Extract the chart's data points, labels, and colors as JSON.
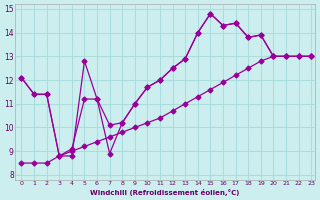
{
  "xlabel": "Windchill (Refroidissement éolien,°C)",
  "ylabel": "",
  "background_color": "#cceeee",
  "grid_color": "#aadddd",
  "line_color": "#990099",
  "xlim": [
    0,
    23
  ],
  "ylim": [
    8,
    15
  ],
  "xticks": [
    0,
    1,
    2,
    3,
    4,
    5,
    6,
    7,
    8,
    9,
    10,
    11,
    12,
    13,
    14,
    15,
    16,
    17,
    18,
    19,
    20,
    21,
    22,
    23
  ],
  "yticks": [
    8,
    9,
    10,
    11,
    12,
    13,
    14,
    15
  ],
  "line1_x": [
    0,
    1,
    2,
    3,
    4,
    5,
    6,
    7,
    8,
    9,
    10,
    11,
    12,
    13,
    14,
    15,
    16,
    17,
    18,
    19,
    20,
    21,
    22,
    23
  ],
  "line1_y": [
    12.1,
    11.4,
    11.4,
    8.8,
    8.8,
    12.8,
    11.2,
    8.9,
    10.2,
    11.0,
    11.7,
    12.0,
    12.5,
    12.9,
    14.0,
    14.8,
    14.3,
    14.4,
    13.8,
    13.9,
    13.0,
    13.0,
    13.0,
    13.0
  ],
  "line2_x": [
    0,
    1,
    2,
    3,
    4,
    5,
    6,
    7,
    8,
    9,
    10,
    11,
    12,
    13,
    14,
    15,
    16,
    17,
    18,
    19,
    20,
    21,
    22,
    23
  ],
  "line2_y": [
    12.1,
    11.4,
    11.4,
    8.8,
    9.1,
    11.2,
    11.2,
    10.1,
    10.2,
    11.0,
    11.7,
    12.0,
    12.5,
    12.9,
    14.0,
    14.8,
    14.3,
    14.4,
    13.8,
    13.9,
    13.0,
    13.0,
    13.0,
    13.0
  ],
  "line3_x": [
    0,
    1,
    2,
    3,
    4,
    5,
    6,
    7,
    8,
    9,
    10,
    11,
    12,
    13,
    14,
    15,
    16,
    17,
    18,
    19,
    20,
    21,
    22,
    23
  ],
  "line3_y": [
    8.5,
    8.5,
    8.5,
    8.8,
    9.0,
    9.2,
    9.4,
    9.6,
    9.8,
    10.0,
    10.2,
    10.4,
    10.7,
    11.0,
    11.3,
    11.6,
    11.9,
    12.2,
    12.5,
    12.8,
    13.0,
    13.0,
    13.0,
    13.0
  ]
}
